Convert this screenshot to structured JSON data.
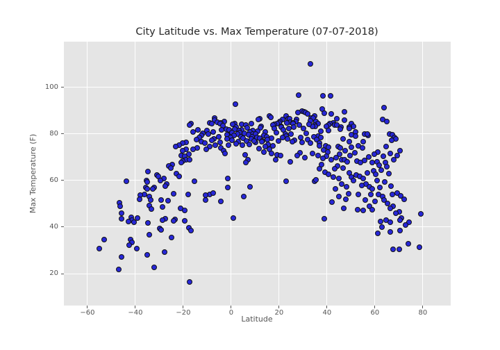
{
  "figure": {
    "kind": "matplotlib-scatter-figure"
  },
  "colors": {
    "figure_bg": "#ffffff",
    "plot_bg": "#e5e5e5",
    "grid": "#ffffff",
    "dot_fill": "#2727d8",
    "dot_edge": "#101010",
    "tick_color": "#555555",
    "label_color": "#555555",
    "title_color": "#262626"
  },
  "chart_data": {
    "type": "scatter",
    "title": "City Latitude vs. Max Temperature (07-07-2018)",
    "xlabel": "Latitude",
    "ylabel": "Max Temperature (F)",
    "xlim": [
      -70,
      91.5
    ],
    "ylim": [
      6.3,
      119.6
    ],
    "x_ticks": [
      -60,
      -40,
      -20,
      0,
      20,
      40,
      60,
      80
    ],
    "x_tick_labels": [
      "−60",
      "−40",
      "−20",
      "0",
      "20",
      "40",
      "60",
      "80"
    ],
    "y_ticks": [
      20,
      40,
      60,
      80,
      100
    ],
    "y_tick_labels": [
      "20",
      "40",
      "60",
      "80",
      "100"
    ],
    "grid": true,
    "legend": false,
    "marker": "circle",
    "points": [
      [
        33.1,
        110
      ],
      [
        28.2,
        96.5
      ],
      [
        38.3,
        96.4
      ],
      [
        41.4,
        96.4
      ],
      [
        1.8,
        92.9
      ],
      [
        63.9,
        91.3
      ],
      [
        38,
        90.7
      ],
      [
        29.6,
        89.8
      ],
      [
        47.2,
        89.6
      ],
      [
        30.5,
        89.5
      ],
      [
        31,
        89.3
      ],
      [
        27.9,
        89.1
      ],
      [
        39,
        88.8
      ],
      [
        41.9,
        88.6
      ],
      [
        31.8,
        88.5
      ],
      [
        16,
        87.8
      ],
      [
        22.8,
        87.8
      ],
      [
        34.9,
        87.6
      ],
      [
        16.5,
        87.2
      ],
      [
        33.4,
        86.8
      ],
      [
        34.1,
        86.8
      ],
      [
        -6.9,
        86.8
      ],
      [
        23.8,
        86.6
      ],
      [
        44.1,
        86.6
      ],
      [
        24.4,
        86.5
      ],
      [
        11.9,
        86.5
      ],
      [
        63.2,
        86.3
      ],
      [
        27.2,
        86.3
      ],
      [
        11.2,
        86.3
      ],
      [
        21.5,
        86.1
      ],
      [
        -6.9,
        85.8
      ],
      [
        47.4,
        85.8
      ],
      [
        33,
        85.5
      ],
      [
        20.2,
        85.3
      ],
      [
        27,
        85.3
      ],
      [
        65.1,
        85.3
      ],
      [
        35.4,
        85.3
      ],
      [
        -2.8,
        85.3
      ],
      [
        -5.7,
        85.1
      ],
      [
        24.7,
        85.1
      ],
      [
        25.7,
        84.8
      ],
      [
        23.3,
        84.8
      ],
      [
        -4.3,
        84.6
      ],
      [
        -8.9,
        84.6
      ],
      [
        19.9,
        84.6
      ],
      [
        42.6,
        84.6
      ],
      [
        19.2,
        84.5
      ],
      [
        36.3,
        84.5
      ],
      [
        1.5,
        84.3
      ],
      [
        8.5,
        84.3
      ],
      [
        25.7,
        84.3
      ],
      [
        50.3,
        84.3
      ],
      [
        41.2,
        84.3
      ],
      [
        -8.1,
        84.3
      ],
      [
        -4.7,
        84.3
      ],
      [
        -16.8,
        84.3
      ],
      [
        0.6,
        84.1
      ],
      [
        4.4,
        84
      ],
      [
        18,
        84
      ],
      [
        -17.4,
        83.9
      ],
      [
        6.1,
        83.7
      ],
      [
        34.9,
        83.8
      ],
      [
        43.1,
        83.8
      ],
      [
        44.1,
        83.8
      ],
      [
        17.3,
        83.8
      ],
      [
        40.7,
        83.8
      ],
      [
        51,
        83.3
      ],
      [
        20.9,
        83.3
      ],
      [
        35.1,
        83.2
      ],
      [
        33.9,
        83.2
      ],
      [
        39.7,
        83.2
      ],
      [
        12.5,
        83.2
      ],
      [
        49.2,
        83
      ],
      [
        -3.6,
        83.4
      ],
      [
        2,
        82.8
      ],
      [
        20.9,
        82.8
      ],
      [
        45.7,
        82.8
      ],
      [
        12.2,
        82.6
      ],
      [
        6.7,
        82.5
      ],
      [
        49.4,
        82.3
      ],
      [
        18,
        82.3
      ],
      [
        45.5,
        82
      ],
      [
        -2.1,
        82.1
      ],
      [
        24.1,
        82.2
      ],
      [
        -13.9,
        81.8
      ],
      [
        4.4,
        81.8
      ],
      [
        -4,
        81.8
      ],
      [
        21.9,
        81.7
      ],
      [
        9,
        81.5
      ],
      [
        -0.9,
        81.6
      ],
      [
        40.7,
        81.3
      ],
      [
        -10.1,
        81.3
      ],
      [
        3.2,
        81.3
      ],
      [
        1.6,
        81.9
      ],
      [
        37.3,
        81
      ],
      [
        10.9,
        81
      ],
      [
        -15.9,
        80.8
      ],
      [
        7.8,
        80.8
      ],
      [
        51.8,
        80.8
      ],
      [
        14.1,
        80.9
      ],
      [
        -7.4,
        80.9
      ],
      [
        5.4,
        80.3
      ],
      [
        -0.4,
        80
      ],
      [
        9.1,
        80
      ],
      [
        22.6,
        80
      ],
      [
        55.7,
        80
      ],
      [
        66,
        80
      ],
      [
        0.2,
        80.6
      ],
      [
        3.6,
        80.5
      ],
      [
        18.8,
        80.5
      ],
      [
        -11.8,
        80.2
      ],
      [
        31.4,
        80.1
      ],
      [
        -9.6,
        79.8
      ],
      [
        10.2,
        79.8
      ],
      [
        25.1,
        79.9
      ],
      [
        2.6,
        79.9
      ],
      [
        50.3,
        79.6
      ],
      [
        7.3,
        79.6
      ],
      [
        67.2,
        79.6
      ],
      [
        -1.7,
        79.5
      ],
      [
        1.1,
        79.3
      ],
      [
        -12.5,
        79.3
      ],
      [
        13.6,
        79.3
      ],
      [
        57.1,
        79.3
      ],
      [
        36.3,
        79
      ],
      [
        52,
        79
      ],
      [
        56.8,
        79.8
      ],
      [
        4,
        78.8
      ],
      [
        14.8,
        78.8
      ],
      [
        8.8,
        78.9
      ],
      [
        34.4,
        78.9
      ],
      [
        -5.2,
        78.9
      ],
      [
        23,
        79.1
      ],
      [
        10.7,
        78.6
      ],
      [
        21.4,
        78.6
      ],
      [
        68.3,
        78.6
      ],
      [
        -0.4,
        78.5
      ],
      [
        29.1,
        78.5
      ],
      [
        37.5,
        78.4
      ],
      [
        -13.2,
        78.4
      ],
      [
        -7.2,
        78
      ],
      [
        -1.8,
        78
      ],
      [
        8.3,
        77.8
      ],
      [
        23.6,
        77.8
      ],
      [
        46.8,
        77.8
      ],
      [
        68.7,
        77.8
      ],
      [
        5,
        78.2
      ],
      [
        12,
        78.2
      ],
      [
        16.9,
        78.2
      ],
      [
        -8.1,
        77.3
      ],
      [
        0.4,
        77.3
      ],
      [
        26.5,
        77.3
      ],
      [
        67,
        77.3
      ],
      [
        15.1,
        77.6
      ],
      [
        32,
        77.6
      ],
      [
        -14.6,
        77.5
      ],
      [
        35.8,
        77.5
      ],
      [
        19.6,
        77.1
      ],
      [
        13.1,
        77
      ],
      [
        6.4,
        77
      ],
      [
        -12.5,
        76.6
      ],
      [
        3,
        76.6
      ],
      [
        12.7,
        76.6
      ],
      [
        25.5,
        76.6
      ],
      [
        49.4,
        76.6
      ],
      [
        -18.9,
        76.3
      ],
      [
        -4.7,
        76.3
      ],
      [
        10.1,
        76.3
      ],
      [
        29.6,
        76.3
      ],
      [
        36.9,
        76.2
      ],
      [
        -20.2,
        76
      ],
      [
        -11,
        76
      ],
      [
        33,
        76
      ],
      [
        2,
        75.8
      ],
      [
        -21.7,
        75.3
      ],
      [
        -6.7,
        75.3
      ],
      [
        -1.2,
        75.3
      ],
      [
        4.6,
        75.3
      ],
      [
        15.5,
        75.5
      ],
      [
        55.2,
        76.8
      ],
      [
        9.6,
        76.9
      ],
      [
        7.6,
        75.6
      ],
      [
        -23.1,
        74.6
      ],
      [
        -8.9,
        74.6
      ],
      [
        14.3,
        74.6
      ],
      [
        44.6,
        74.6
      ],
      [
        64.6,
        74.6
      ],
      [
        17.5,
        74.8
      ],
      [
        36.8,
        74.8
      ],
      [
        39.4,
        74.8
      ],
      [
        53,
        74.8
      ],
      [
        -14.1,
        74
      ],
      [
        -4.4,
        74
      ],
      [
        45.5,
        74
      ],
      [
        54.7,
        74
      ],
      [
        40.7,
        74.3
      ],
      [
        50.1,
        74.3
      ],
      [
        11.7,
        73.8
      ],
      [
        -15.9,
        73.3
      ],
      [
        -10.5,
        73.3
      ],
      [
        -18.8,
        73.3
      ],
      [
        16,
        73.3
      ],
      [
        38.6,
        73.2
      ],
      [
        -3.3,
        72.8
      ],
      [
        -20.2,
        72.8
      ],
      [
        70.6,
        72.8
      ],
      [
        28.8,
        72
      ],
      [
        47.7,
        72.9
      ],
      [
        61.3,
        72.3
      ],
      [
        13.6,
        72.3
      ],
      [
        40.2,
        72.1
      ],
      [
        51.5,
        71.9
      ],
      [
        -2.5,
        71.6
      ],
      [
        16.8,
        71.6
      ],
      [
        33.9,
        71.6
      ],
      [
        -17.8,
        71.3
      ],
      [
        59.7,
        71.3
      ],
      [
        5.9,
        71
      ],
      [
        19.1,
        71
      ],
      [
        66.4,
        71.5
      ],
      [
        45.2,
        71.2
      ],
      [
        -20.9,
        70.8
      ],
      [
        20.7,
        70.8
      ],
      [
        27.6,
        70.8
      ],
      [
        36.3,
        70.8
      ],
      [
        49.7,
        70.8
      ],
      [
        69.2,
        70.8
      ],
      [
        -19.5,
        70.3
      ],
      [
        39.7,
        70.3
      ],
      [
        63.4,
        70.3
      ],
      [
        57.3,
        70.2
      ],
      [
        30.7,
        69.8
      ],
      [
        43.9,
        69.9
      ],
      [
        -18.8,
        69
      ],
      [
        6.9,
        69
      ],
      [
        18.5,
        69
      ],
      [
        41.9,
        69
      ],
      [
        46.2,
        68.9
      ],
      [
        -17.3,
        68.8
      ],
      [
        47.4,
        68.8
      ],
      [
        68,
        68.9
      ],
      [
        -20.2,
        68.3
      ],
      [
        52.6,
        68.3
      ],
      [
        -20.9,
        67.8
      ],
      [
        53.9,
        67.8
      ],
      [
        6.2,
        67.8
      ],
      [
        64.3,
        67.8
      ],
      [
        24.7,
        68
      ],
      [
        48.4,
        68
      ],
      [
        61,
        68
      ],
      [
        58.8,
        67.6
      ],
      [
        55.8,
        68.7
      ],
      [
        38.3,
        69.6
      ],
      [
        -24.6,
        66.7
      ],
      [
        -26,
        66.1
      ],
      [
        44.3,
        66.2
      ],
      [
        -25.3,
        65.4
      ],
      [
        46.8,
        65.4
      ],
      [
        64.9,
        65.8
      ],
      [
        -34.7,
        63.9
      ],
      [
        39.2,
        63.4
      ],
      [
        -22.8,
        62.9
      ],
      [
        61.8,
        66.6
      ],
      [
        36.8,
        64.9
      ],
      [
        43.1,
        64.9
      ],
      [
        59.4,
        64
      ],
      [
        62.7,
        64.4
      ],
      [
        49.4,
        63.1
      ],
      [
        56.9,
        63.1
      ],
      [
        -31.1,
        62.4
      ],
      [
        52.3,
        62.4
      ],
      [
        40.7,
        62.7
      ],
      [
        65.8,
        62.9
      ],
      [
        -21.8,
        61.9
      ],
      [
        -30.5,
        61.7
      ],
      [
        53.7,
        61.7
      ],
      [
        42.6,
        61.6
      ],
      [
        50.3,
        61.4
      ],
      [
        -1.4,
        60.9
      ],
      [
        -28.2,
        60.9
      ],
      [
        55.2,
        60.9
      ],
      [
        44.9,
        60.9
      ],
      [
        -35.4,
        60.1
      ],
      [
        51,
        59.9
      ],
      [
        -29.6,
        59.9
      ],
      [
        60.8,
        60.1
      ],
      [
        60.2,
        62.6
      ],
      [
        -43.7,
        59.7
      ],
      [
        -15.4,
        59.7
      ],
      [
        22.8,
        59.7
      ],
      [
        34.9,
        59.7
      ],
      [
        -35.1,
        59.3
      ],
      [
        35.4,
        60.4
      ],
      [
        64.1,
        59.4
      ],
      [
        -27,
        58.4
      ],
      [
        56.4,
        58.4
      ],
      [
        46,
        58.6
      ],
      [
        -27.4,
        57.7
      ],
      [
        57.6,
        57.4
      ],
      [
        -35.7,
        57.1
      ],
      [
        -32.1,
        57.1
      ],
      [
        7.8,
        57.2
      ],
      [
        -1.4,
        56.9
      ],
      [
        48.2,
        57.3
      ],
      [
        62,
        57
      ],
      [
        66.8,
        57.6
      ],
      [
        -35,
        56.4
      ],
      [
        -32.8,
        56.4
      ],
      [
        59,
        56.4
      ],
      [
        43.6,
        56.4
      ],
      [
        58.2,
        54.1
      ],
      [
        54.4,
        57.9
      ],
      [
        -34.2,
        53
      ],
      [
        45,
        53
      ],
      [
        -36.3,
        54.1
      ],
      [
        67.2,
        54.1
      ],
      [
        -24.1,
        54.4
      ],
      [
        48.9,
        54.4
      ],
      [
        -9.1,
        54.1
      ],
      [
        -7.6,
        54.7
      ],
      [
        69.4,
        54.7
      ],
      [
        -10.8,
        53.7
      ],
      [
        -37.9,
        53.7
      ],
      [
        53.2,
        53.9
      ],
      [
        -18,
        53.9
      ],
      [
        61.4,
        53.9
      ],
      [
        5.2,
        53.2
      ],
      [
        63.2,
        53.2
      ],
      [
        70.9,
        53.4
      ],
      [
        -33.7,
        51.5
      ],
      [
        -10.8,
        51.5
      ],
      [
        -29.2,
        51.5
      ],
      [
        56.1,
        51.5
      ],
      [
        -38.3,
        51.8
      ],
      [
        47.9,
        51.9
      ],
      [
        72.1,
        51.9
      ],
      [
        -26.5,
        51.2
      ],
      [
        -4.3,
        51
      ],
      [
        63.9,
        51.5
      ],
      [
        -46.6,
        50.5
      ],
      [
        60,
        50.9
      ],
      [
        42.1,
        50.8
      ],
      [
        65.3,
        50
      ],
      [
        -34.2,
        49.2
      ],
      [
        -46.3,
        48.8
      ],
      [
        -28.6,
        48.5
      ],
      [
        67.7,
        49
      ],
      [
        57.6,
        49
      ],
      [
        -21.2,
        48
      ],
      [
        -33.4,
        47.8
      ],
      [
        66.3,
        48
      ],
      [
        47,
        48
      ],
      [
        -19.5,
        47.2
      ],
      [
        52.7,
        47.5
      ],
      [
        59,
        47.5
      ],
      [
        55.2,
        47
      ],
      [
        70.1,
        46.6
      ],
      [
        -45.8,
        45.9
      ],
      [
        68.7,
        45.9
      ],
      [
        79.3,
        45.6
      ],
      [
        -41.7,
        44.2
      ],
      [
        -39,
        44
      ],
      [
        0.9,
        44
      ],
      [
        71.2,
        44
      ],
      [
        -45.8,
        43.5
      ],
      [
        -27.6,
        43.5
      ],
      [
        38.8,
        43.6
      ],
      [
        -23.6,
        43.3
      ],
      [
        -41.4,
        43
      ],
      [
        64.8,
        43
      ],
      [
        70.6,
        43
      ],
      [
        -42.9,
        42.5
      ],
      [
        62.4,
        42.5
      ],
      [
        -28.6,
        42.9
      ],
      [
        -24.1,
        42.7
      ],
      [
        -19.5,
        42.7
      ],
      [
        -40.5,
        42
      ],
      [
        66.5,
        42
      ],
      [
        74.2,
        42
      ],
      [
        -34.7,
        41.9
      ],
      [
        72.8,
        40.8
      ],
      [
        -17.8,
        39.6
      ],
      [
        62.9,
        40
      ],
      [
        -29.9,
        39.4
      ],
      [
        -29.4,
        38.8
      ],
      [
        -16.8,
        38.5
      ],
      [
        66.3,
        38
      ],
      [
        70.6,
        38.5
      ],
      [
        61.3,
        37.2
      ],
      [
        -34.2,
        36.7
      ],
      [
        -25,
        35.5
      ],
      [
        -53,
        34.5
      ],
      [
        -41.9,
        34.7
      ],
      [
        -41.4,
        33.5
      ],
      [
        74,
        32.7
      ],
      [
        -42.7,
        32.3
      ],
      [
        -55,
        30.7
      ],
      [
        -39.5,
        30.7
      ],
      [
        67.5,
        30.5
      ],
      [
        70.3,
        30.5
      ],
      [
        78.6,
        31.2
      ],
      [
        -35.2,
        28
      ],
      [
        -27.9,
        29.3
      ],
      [
        -45.8,
        27.3
      ],
      [
        -32.3,
        22.8
      ],
      [
        -47,
        21.8
      ],
      [
        -17.3,
        16.4
      ],
      [
        37.8,
        66.9
      ],
      [
        26.2,
        82.9
      ],
      [
        28.4,
        83.9
      ],
      [
        30.2,
        82.4
      ],
      [
        32.4,
        84.2
      ]
    ]
  }
}
